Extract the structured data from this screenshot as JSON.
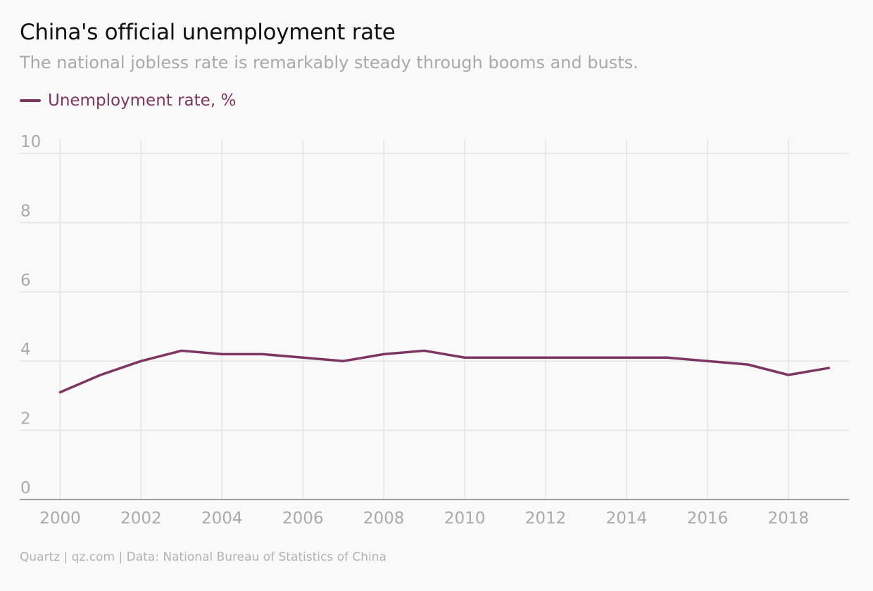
{
  "header": {
    "title": "China's official unemployment rate",
    "subtitle": "The national jobless rate is remarkably steady through booms and busts."
  },
  "footer": {
    "source": "Quartz | qz.com | Data: National Bureau of Statistics of China"
  },
  "colors": {
    "series": "#7d3562",
    "grid": "#e4e4e4",
    "axis": "#9e9e9e",
    "tick_label": "#aaaaaa",
    "background": "#f9f9f9"
  },
  "chart_data": {
    "type": "line",
    "title": "China's official unemployment rate",
    "subtitle": "The national jobless rate is remarkably steady through booms and busts.",
    "xlabel": "",
    "ylabel": "",
    "x": [
      2000,
      2001,
      2002,
      2003,
      2004,
      2005,
      2006,
      2007,
      2008,
      2009,
      2010,
      2011,
      2012,
      2013,
      2014,
      2015,
      2016,
      2017,
      2018,
      2019
    ],
    "series": [
      {
        "name": "Unemployment rate, %",
        "values": [
          3.1,
          3.6,
          4.0,
          4.3,
          4.2,
          4.2,
          4.1,
          4.0,
          4.2,
          4.3,
          4.1,
          4.1,
          4.1,
          4.1,
          4.1,
          4.1,
          4.0,
          3.9,
          3.6,
          3.8
        ]
      }
    ],
    "xlim": [
      1999,
      2019.5
    ],
    "ylim": [
      0,
      10
    ],
    "xticks": [
      "2000",
      "2002",
      "2004",
      "2006",
      "2008",
      "2010",
      "2012",
      "2014",
      "2016",
      "2018"
    ],
    "yticks": [
      "0",
      "2",
      "4",
      "6",
      "8",
      "10"
    ],
    "grid": true,
    "legend_position": "top-left"
  }
}
